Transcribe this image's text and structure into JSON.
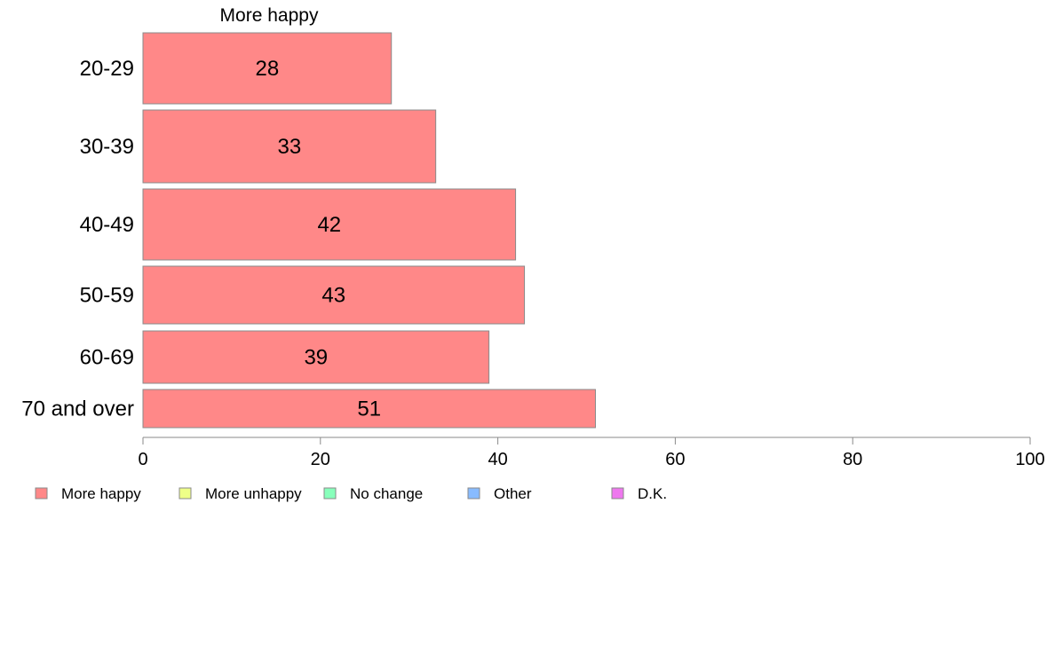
{
  "chart_data": {
    "type": "bar",
    "orientation": "horizontal",
    "series_title": "More happy",
    "categories": [
      "20-29",
      "30-39",
      "40-49",
      "50-59",
      "60-69",
      "70 and over"
    ],
    "series": [
      {
        "name": "More happy",
        "values": [
          28,
          33,
          42,
          43,
          39,
          51
        ],
        "color": "#ff8888"
      }
    ],
    "data_labels": [
      "28",
      "33",
      "42",
      "43",
      "39",
      "51"
    ],
    "xlim": [
      0,
      100
    ],
    "x_ticks": [
      0,
      20,
      40,
      60,
      80,
      100
    ],
    "x_tick_labels": [
      "0",
      "20",
      "40",
      "60",
      "80",
      "100"
    ],
    "grid": false,
    "legend_position": "bottom-left",
    "legend": [
      {
        "label": "More happy",
        "color": "#ff8888"
      },
      {
        "label": "More unhappy",
        "color": "#eeff88"
      },
      {
        "label": "No change",
        "color": "#88ffbb"
      },
      {
        "label": "Other",
        "color": "#88bbff"
      },
      {
        "label": "D.K.",
        "color": "#ee77ee"
      }
    ]
  }
}
